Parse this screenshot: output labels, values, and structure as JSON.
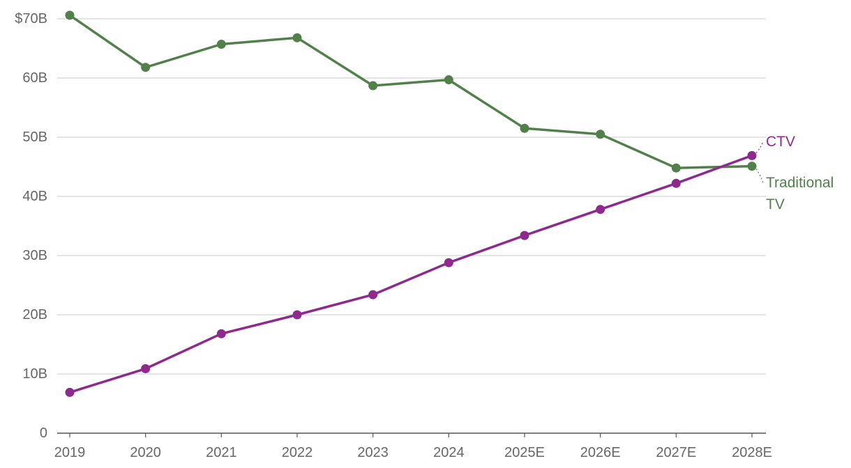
{
  "chart_data": {
    "type": "line",
    "title": "",
    "xlabel": "",
    "ylabel": "",
    "categories": [
      "2019",
      "2020",
      "2021",
      "2022",
      "2023",
      "2024",
      "2025E",
      "2026E",
      "2027E",
      "2028E"
    ],
    "ylim": [
      0,
      70
    ],
    "yticks": [
      {
        "value": 0,
        "label": "0"
      },
      {
        "value": 10,
        "label": "10B"
      },
      {
        "value": 20,
        "label": "20B"
      },
      {
        "value": 30,
        "label": "30B"
      },
      {
        "value": 40,
        "label": "40B"
      },
      {
        "value": 50,
        "label": "50B"
      },
      {
        "value": 60,
        "label": "60B"
      },
      {
        "value": 70,
        "label": "$70B"
      }
    ],
    "grid": true,
    "series": [
      {
        "name": "Traditional TV",
        "label_lines": [
          "Traditional",
          "TV"
        ],
        "color": "#52804a",
        "values": [
          70.6,
          61.8,
          65.7,
          66.8,
          58.7,
          59.7,
          51.5,
          50.5,
          44.8,
          45.1
        ]
      },
      {
        "name": "CTV",
        "label_lines": [
          "CTV"
        ],
        "color": "#8e2a8e",
        "values": [
          6.9,
          10.9,
          16.8,
          20.0,
          23.4,
          28.8,
          33.4,
          37.8,
          42.2,
          46.9
        ]
      }
    ]
  }
}
